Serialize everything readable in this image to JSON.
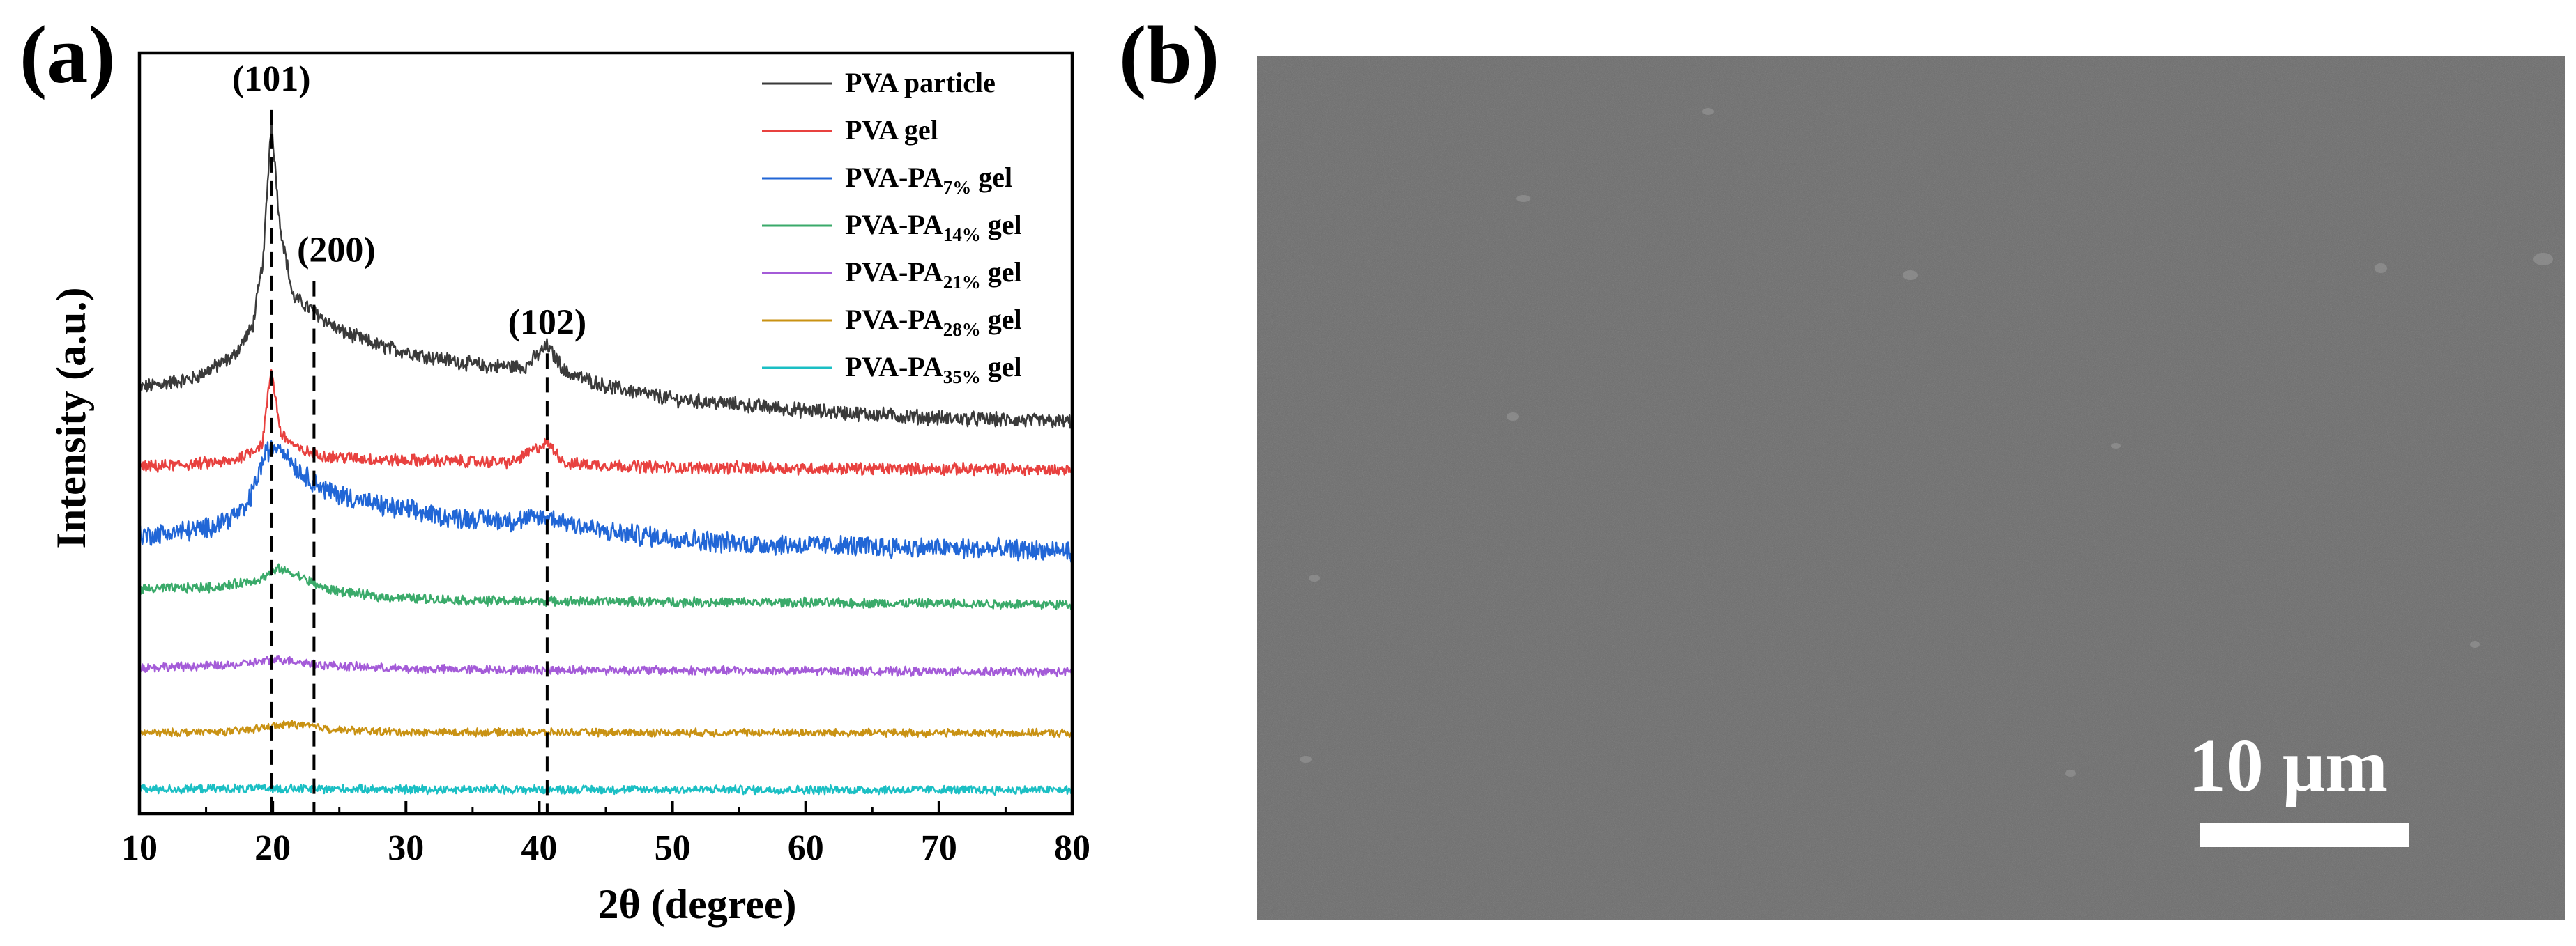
{
  "figure": {
    "panel_a_label": "(a)",
    "panel_b_label": "(b)"
  },
  "chart_data": {
    "type": "line",
    "title": "",
    "xlabel": "2θ (degree)",
    "ylabel": "Intensity (a.u.)",
    "xlim": [
      10,
      80
    ],
    "xticks": [
      10,
      20,
      30,
      40,
      50,
      60,
      70,
      80
    ],
    "ylim": [
      0,
      100
    ],
    "yticks_shown": false,
    "legend_position": "top-right",
    "peaks": [
      {
        "label": "(101)",
        "x": 19.9
      },
      {
        "label": "(200)",
        "x": 23.1
      },
      {
        "label": "(102)",
        "x": 40.6
      }
    ],
    "series": [
      {
        "name": "PVA particle",
        "name_main": "PVA particle",
        "name_sub": "",
        "name_tail": "",
        "color": "#3a3a3a",
        "baseline": 56,
        "tail_baseline": 51.5,
        "noise": 0.85,
        "x": [
          10,
          14,
          17,
          18.5,
          19.3,
          19.9,
          20.5,
          21.5,
          23.1,
          25,
          28,
          32,
          36,
          39,
          40.6,
          42,
          45,
          50,
          60,
          70,
          80
        ],
        "values": [
          56,
          57.2,
          60,
          64,
          73,
          91.5,
          78,
          68,
          66,
          63.5,
          61.5,
          60,
          58.8,
          58.8,
          61.5,
          58,
          56.2,
          54.5,
          53,
          52,
          51.5
        ]
      },
      {
        "name": "PVA gel",
        "name_main": "PVA gel",
        "name_sub": "",
        "name_tail": "",
        "color": "#e8413f",
        "baseline": 45.5,
        "tail_baseline": 45.2,
        "noise": 0.7,
        "x": [
          10,
          17,
          19.2,
          19.9,
          20.6,
          22,
          24,
          28,
          38,
          40.6,
          42,
          50,
          80
        ],
        "values": [
          45.5,
          46.3,
          48.5,
          58.5,
          50,
          47.8,
          47,
          46.5,
          46.2,
          48.8,
          46,
          45.5,
          45.2
        ]
      },
      {
        "name": "PVA-PA7% gel",
        "name_main": "PVA-PA",
        "name_sub": "7%",
        "name_tail": " gel",
        "color": "#2166d6",
        "baseline": 36.5,
        "tail_baseline": 34.5,
        "noise": 1.2,
        "x": [
          10,
          15,
          18,
          19.5,
          20.5,
          22,
          24,
          28,
          33,
          38,
          40.6,
          45,
          55,
          80
        ],
        "values": [
          36.5,
          37.5,
          40,
          47.5,
          48.5,
          45,
          42.5,
          40.5,
          39,
          38.5,
          39,
          37,
          35.5,
          34.5
        ]
      },
      {
        "name": "PVA-PA14% gel",
        "name_main": "PVA-PA",
        "name_sub": "14%",
        "name_tail": " gel",
        "color": "#3aaa6a",
        "baseline": 29.5,
        "tail_baseline": 27.5,
        "noise": 0.55,
        "x": [
          10,
          16,
          19,
          20.5,
          22,
          24,
          28,
          35,
          80
        ],
        "values": [
          29.5,
          29.8,
          30.8,
          32.2,
          31.2,
          29.5,
          28.5,
          28,
          27.5
        ]
      },
      {
        "name": "PVA-PA21% gel",
        "name_main": "PVA-PA",
        "name_sub": "21%",
        "name_tail": " gel",
        "color": "#a45bd8",
        "baseline": 19.2,
        "tail_baseline": 18.6,
        "noise": 0.5,
        "x": [
          10,
          17,
          20.5,
          24,
          30,
          80
        ],
        "values": [
          19.2,
          19.5,
          20.3,
          19.5,
          19,
          18.6
        ]
      },
      {
        "name": "PVA-PA28% gel",
        "name_main": "PVA-PA",
        "name_sub": "28%",
        "name_tail": " gel",
        "color": "#c99213",
        "baseline": 10.6,
        "tail_baseline": 10.6,
        "noise": 0.45,
        "x": [
          10,
          17,
          21.5,
          25,
          30,
          80
        ],
        "values": [
          10.6,
          10.8,
          11.8,
          11,
          10.7,
          10.6
        ]
      },
      {
        "name": "PVA-PA35% gel",
        "name_main": "PVA-PA",
        "name_sub": "35%",
        "name_tail": " gel",
        "color": "#1bbfc4",
        "baseline": 3.2,
        "tail_baseline": 3.1,
        "noise": 0.5,
        "x": [
          10,
          20,
          30,
          80
        ],
        "values": [
          3.2,
          3.3,
          3.2,
          3.1
        ]
      }
    ]
  },
  "sem_image": {
    "background_color": "#6d6d6d",
    "scale_bar_label": "10 μm",
    "scale_bar_color": "#ffffff"
  }
}
